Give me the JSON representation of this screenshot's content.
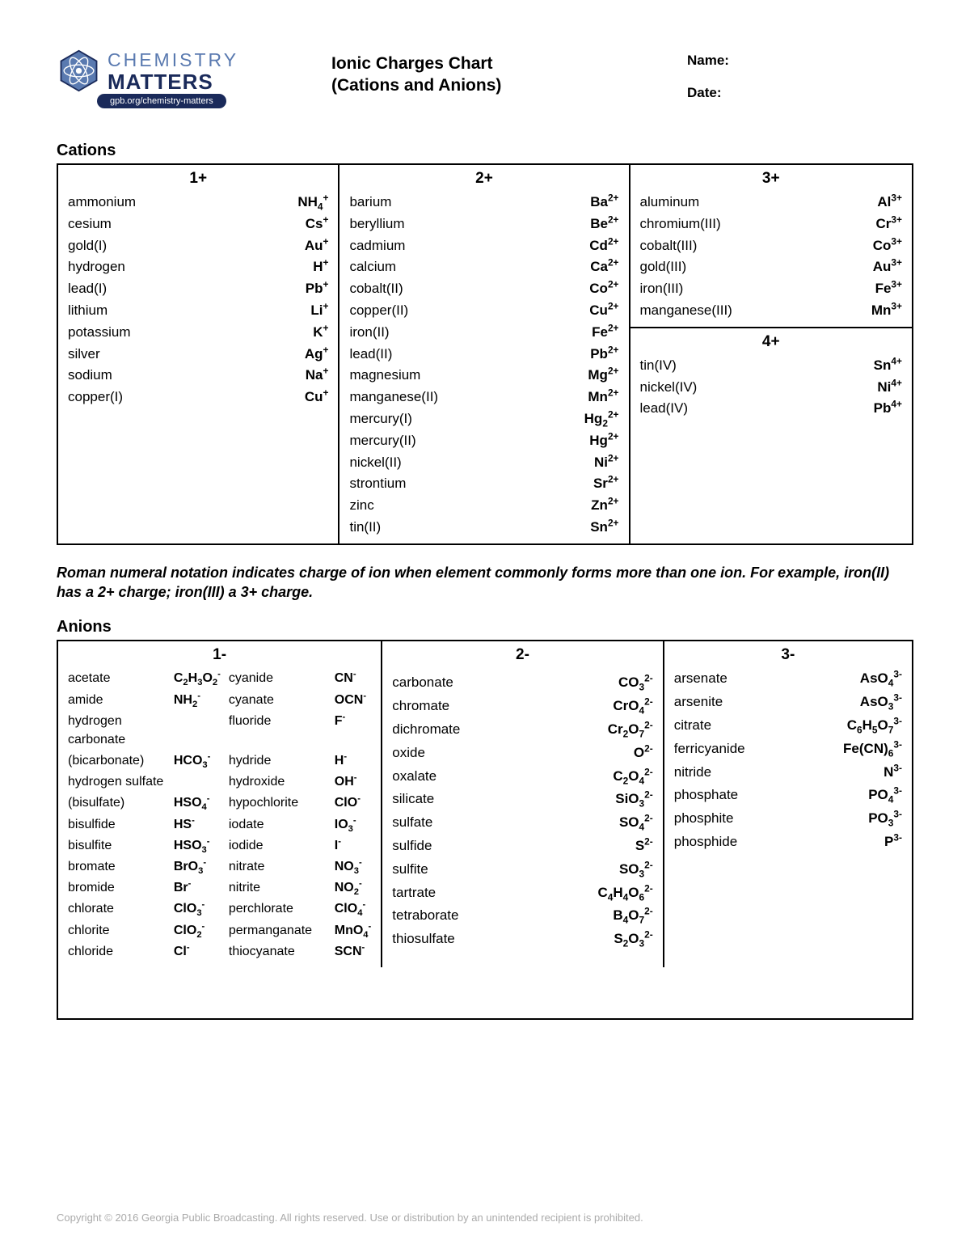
{
  "header": {
    "logo_top": "CHEMISTRY",
    "logo_bottom": "MATTERS",
    "logo_pill": "gpb.org/chemistry-matters",
    "title_line1": "Ionic Charges Chart",
    "title_line2": "(Cations and Anions)",
    "name_label": "Name:",
    "date_label": "Date:"
  },
  "sections": {
    "cations_title": "Cations",
    "anions_title": "Anions"
  },
  "cations": {
    "c1plus": {
      "head": "1+",
      "items": [
        {
          "name": "ammonium",
          "formula": "NH<sub>4</sub><sup>+</sup>"
        },
        {
          "name": "cesium",
          "formula": "Cs<sup>+</sup>"
        },
        {
          "name": "gold(I)",
          "formula": "Au<sup>+</sup>"
        },
        {
          "name": "hydrogen",
          "formula": "H<sup>+</sup>"
        },
        {
          "name": "lead(I)",
          "formula": "Pb<sup>+</sup>"
        },
        {
          "name": "lithium",
          "formula": "Li<sup>+</sup>"
        },
        {
          "name": "potassium",
          "formula": "K<sup>+</sup>"
        },
        {
          "name": "silver",
          "formula": "Ag<sup>+</sup>"
        },
        {
          "name": "sodium",
          "formula": "Na<sup>+</sup>"
        },
        {
          "name": "copper(I)",
          "formula": "Cu<sup>+</sup>"
        }
      ]
    },
    "c2plus": {
      "head": "2+",
      "items": [
        {
          "name": "barium",
          "formula": "Ba<sup>2+</sup>"
        },
        {
          "name": "beryllium",
          "formula": "Be<sup>2+</sup>"
        },
        {
          "name": "cadmium",
          "formula": "Cd<sup>2+</sup>"
        },
        {
          "name": "calcium",
          "formula": "Ca<sup>2+</sup>"
        },
        {
          "name": "cobalt(II)",
          "formula": "Co<sup>2+</sup>"
        },
        {
          "name": "copper(II)",
          "formula": "Cu<sup>2+</sup>"
        },
        {
          "name": "iron(II)",
          "formula": "Fe<sup>2+</sup>"
        },
        {
          "name": "lead(II)",
          "formula": "Pb<sup>2+</sup>"
        },
        {
          "name": "magnesium",
          "formula": "Mg<sup>2+</sup>"
        },
        {
          "name": "manganese(II)",
          "formula": "Mn<sup>2+</sup>"
        },
        {
          "name": "mercury(I)",
          "formula": "Hg<sub>2</sub><sup>2+</sup>"
        },
        {
          "name": "mercury(II)",
          "formula": "Hg<sup>2+</sup>"
        },
        {
          "name": "nickel(II)",
          "formula": "Ni<sup>2+</sup>"
        },
        {
          "name": "strontium",
          "formula": "Sr<sup>2+</sup>"
        },
        {
          "name": "zinc",
          "formula": "Zn<sup>2+</sup>"
        },
        {
          "name": "tin(II)",
          "formula": "Sn<sup>2+</sup>"
        }
      ]
    },
    "c3plus": {
      "head": "3+",
      "items": [
        {
          "name": "aluminum",
          "formula": "Al<sup>3+</sup>"
        },
        {
          "name": "chromium(III)",
          "formula": "Cr<sup>3+</sup>"
        },
        {
          "name": "cobalt(III)",
          "formula": "Co<sup>3+</sup>"
        },
        {
          "name": "gold(III)",
          "formula": "Au<sup>3+</sup>"
        },
        {
          "name": "iron(III)",
          "formula": "Fe<sup>3+</sup>"
        },
        {
          "name": "manganese(III)",
          "formula": "Mn<sup>3+</sup>"
        }
      ]
    },
    "c4plus": {
      "head": "4+",
      "items": [
        {
          "name": "tin(IV)",
          "formula": "Sn<sup>4+</sup>"
        },
        {
          "name": "nickel(IV)",
          "formula": "Ni<sup>4+</sup>"
        },
        {
          "name": "lead(IV)",
          "formula": "Pb<sup>4+</sup>"
        }
      ]
    }
  },
  "note": "Roman numeral notation indicates charge of ion when element commonly forms more than one ion. For example, iron(II) has a 2+ charge; iron(III) a 3+ charge.",
  "anions": {
    "a1minus": {
      "head": "1-",
      "left": [
        {
          "name": "acetate",
          "formula": "C<sub>2</sub>H<sub>3</sub>O<sub>2</sub><sup>-</sup>"
        },
        {
          "name": "amide",
          "formula": "NH<sub>2</sub><sup>-</sup>"
        },
        {
          "name": "hydrogen carbonate",
          "formula": ""
        },
        {
          "name": "(bicarbonate)",
          "formula": "HCO<sub>3</sub><sup>-</sup>"
        },
        {
          "name": "hydrogen sulfate",
          "formula": ""
        },
        {
          "name": "(bisulfate)",
          "formula": "HSO<sub>4</sub><sup>-</sup>"
        },
        {
          "name": "bisulfide",
          "formula": "HS<sup>-</sup>"
        },
        {
          "name": "bisulfite",
          "formula": "HSO<sub>3</sub><sup>-</sup>"
        },
        {
          "name": "bromate",
          "formula": "BrO<sub>3</sub><sup>-</sup>"
        },
        {
          "name": "bromide",
          "formula": "Br<sup>-</sup>"
        },
        {
          "name": "chlorate",
          "formula": "ClO<sub>3</sub><sup>-</sup>"
        },
        {
          "name": "chlorite",
          "formula": "ClO<sub>2</sub><sup>-</sup>"
        },
        {
          "name": "chloride",
          "formula": "Cl<sup>-</sup>"
        }
      ],
      "right": [
        {
          "name": "cyanide",
          "formula": "CN<sup>-</sup>"
        },
        {
          "name": "cyanate",
          "formula": "OCN<sup>-</sup>"
        },
        {
          "name": "fluoride",
          "formula": "F<sup>-</sup>"
        },
        {
          "name": "hydride",
          "formula": "H<sup>-</sup>"
        },
        {
          "name": "hydroxide",
          "formula": "OH<sup>-</sup>"
        },
        {
          "name": "hypochlorite",
          "formula": "ClO<sup>-</sup>"
        },
        {
          "name": "iodate",
          "formula": "IO<sub>3</sub><sup>-</sup>"
        },
        {
          "name": "iodide",
          "formula": "I<sup>-</sup>"
        },
        {
          "name": "nitrate",
          "formula": "NO<sub>3</sub><sup>-</sup>"
        },
        {
          "name": "nitrite",
          "formula": "NO<sub>2</sub><sup>-</sup>"
        },
        {
          "name": "perchlorate",
          "formula": "ClO<sub>4</sub><sup>-</sup>"
        },
        {
          "name": "permanganate",
          "formula": "MnO<sub>4</sub><sup>-</sup>"
        },
        {
          "name": "thiocyanate",
          "formula": "SCN<sup>-</sup>"
        }
      ]
    },
    "a2minus": {
      "head": "2-",
      "items": [
        {
          "name": "",
          "formula": ""
        },
        {
          "name": "carbonate",
          "formula": "CO<sub>3</sub><sup>2-</sup>"
        },
        {
          "name": "chromate",
          "formula": "CrO<sub>4</sub><sup>2-</sup>"
        },
        {
          "name": "dichromate",
          "formula": "Cr<sub>2</sub>O<sub>7</sub><sup>2-</sup>"
        },
        {
          "name": "oxide",
          "formula": "O<sup>2-</sup>"
        },
        {
          "name": "oxalate",
          "formula": "C<sub>2</sub>O<sub>4</sub><sup>2-</sup>"
        },
        {
          "name": "silicate",
          "formula": "SiO<sub>3</sub><sup>2-</sup>"
        },
        {
          "name": "sulfate",
          "formula": "SO<sub>4</sub><sup>2-</sup>"
        },
        {
          "name": "sulfide",
          "formula": "S<sup>2-</sup>"
        },
        {
          "name": "sulfite",
          "formula": "SO<sub>3</sub><sup>2-</sup>"
        },
        {
          "name": "tartrate",
          "formula": "C<sub>4</sub>H<sub>4</sub>O<sub>6</sub><sup>2-</sup>"
        },
        {
          "name": "tetraborate",
          "formula": "B<sub>4</sub>O<sub>7</sub><sup>2-</sup>"
        },
        {
          "name": "thiosulfate",
          "formula": "S<sub>2</sub>O<sub>3</sub><sup>2-</sup>"
        }
      ]
    },
    "a3minus": {
      "head": "3-",
      "items": [
        {
          "name": "arsenate",
          "formula": "AsO<sub>4</sub><sup>3-</sup>"
        },
        {
          "name": "arsenite",
          "formula": "AsO<sub>3</sub><sup>3-</sup>"
        },
        {
          "name": "citrate",
          "formula": "C<sub>6</sub>H<sub>5</sub>O<sub>7</sub><sup>3-</sup>"
        },
        {
          "name": "ferricyanide",
          "formula": "Fe(CN)<sub>6</sub><sup>3-</sup>"
        },
        {
          "name": "nitride",
          "formula": "N<sup>3-</sup>"
        },
        {
          "name": "phosphate",
          "formula": "PO<sub>4</sub><sup>3-</sup>"
        },
        {
          "name": "phosphite",
          "formula": "PO<sub>3</sub><sup>3-</sup>"
        },
        {
          "name": "phosphide",
          "formula": "P<sup>3-</sup>"
        }
      ]
    }
  },
  "footer": "Copyright © 2016 Georgia Public Broadcasting. All rights reserved. Use or distribution by an unintended recipient is prohibited.",
  "layout": {
    "cation_col_widths": [
      "33%",
      "34%",
      "33%"
    ],
    "anion_col_widths": [
      "38%",
      "33%",
      "29%"
    ]
  },
  "colors": {
    "border": "#000000",
    "logo_light": "#5a7ab0",
    "logo_dark": "#1a2a5a",
    "footer_text": "#aaaaaa"
  }
}
